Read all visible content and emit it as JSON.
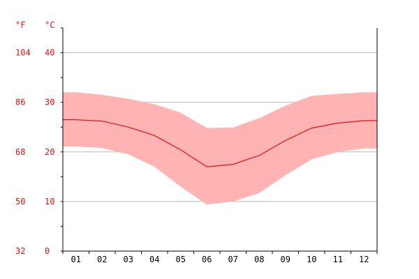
{
  "chart_data": {
    "type": "area",
    "categories": [
      "01",
      "02",
      "03",
      "04",
      "05",
      "06",
      "07",
      "08",
      "09",
      "10",
      "11",
      "12"
    ],
    "series": [
      {
        "role": "mean",
        "values": [
          26.5,
          26.2,
          25.0,
          23.3,
          20.4,
          17.0,
          17.5,
          19.3,
          22.3,
          24.8,
          25.8,
          26.3
        ]
      },
      {
        "role": "max",
        "values": [
          32.0,
          31.5,
          30.7,
          29.6,
          27.9,
          24.8,
          24.9,
          26.8,
          29.3,
          31.3,
          31.7,
          32.0
        ]
      },
      {
        "role": "min",
        "values": [
          21.1,
          20.8,
          19.5,
          17.0,
          13.0,
          9.4,
          10.0,
          11.7,
          15.3,
          18.5,
          20.0,
          20.7
        ]
      }
    ],
    "ylim": [
      0,
      45
    ],
    "unit_left": "°F",
    "unit_right": "°C",
    "yticks_c": [
      0,
      10,
      20,
      30,
      40
    ],
    "yticks_f": [
      "32",
      "50",
      "68",
      "86",
      "104"
    ],
    "grid": true
  },
  "colors": {
    "band": "#ffb3b3",
    "line": "#e0120f",
    "label": "#e0120f",
    "grid": "#bbbbbb"
  }
}
